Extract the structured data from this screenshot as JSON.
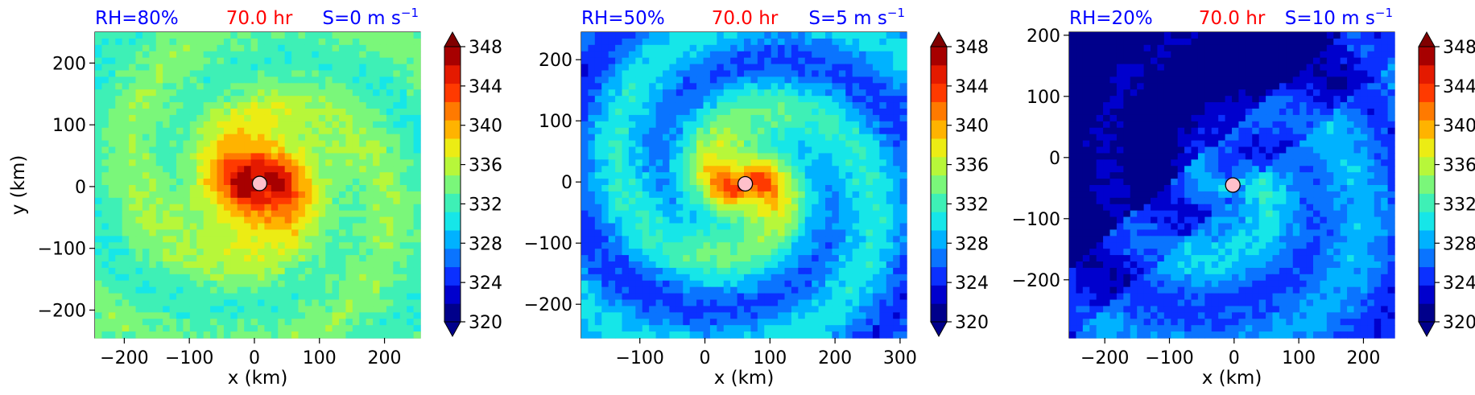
{
  "chart_data": [
    {
      "type": "heatmap",
      "header": {
        "left": "RH=80%",
        "center": "70.0 hr",
        "right_base": "S=0 m s",
        "right_exp": "−1"
      },
      "xlabel": "x (km)",
      "ylabel": "y (km)",
      "xticks": [
        -200,
        -100,
        0,
        100,
        200
      ],
      "yticks": [
        -200,
        -100,
        0,
        100,
        200
      ],
      "xlim": [
        -245,
        255
      ],
      "ylim": [
        -245,
        250
      ],
      "center_marker": {
        "x": 8,
        "y": 5
      },
      "field": {
        "center": [
          8,
          5
        ],
        "eye_radius_km": 30,
        "eye_value": 348,
        "outer_value": 333.5,
        "decay_km": 55,
        "spiral_amp": 1.5
      },
      "colorbar": {
        "ticks": [
          320,
          324,
          328,
          332,
          336,
          340,
          344,
          348
        ]
      }
    },
    {
      "type": "heatmap",
      "header": {
        "left": "RH=50%",
        "center": "70.0 hr",
        "right_base": "S=5 m s",
        "right_exp": "−1"
      },
      "xlabel": "x (km)",
      "ylabel": "",
      "xticks": [
        -100,
        0,
        100,
        200,
        300
      ],
      "yticks": [
        -200,
        -100,
        0,
        100,
        200
      ],
      "xlim": [
        -190,
        310
      ],
      "ylim": [
        -255,
        245
      ],
      "center_marker": {
        "x": 62,
        "y": -3
      },
      "field": {
        "center": [
          62,
          -3
        ],
        "eye_radius_km": 25,
        "eye_value": 343,
        "outer_value": 327.5,
        "decay_km": 70,
        "spiral_amp": 3.0
      },
      "colorbar": {
        "ticks": [
          320,
          324,
          328,
          332,
          336,
          340,
          344,
          348
        ]
      }
    },
    {
      "type": "heatmap",
      "header": {
        "left": "RH=20%",
        "center": "70.0 hr",
        "right_base": "S=10 m s",
        "right_exp": "−1"
      },
      "xlabel": "x (km)",
      "ylabel": "",
      "xticks": [
        -200,
        -100,
        0,
        100,
        200
      ],
      "yticks": [
        -200,
        -100,
        0,
        100,
        200
      ],
      "xlim": [
        -255,
        248
      ],
      "ylim": [
        -295,
        205
      ],
      "center_marker": {
        "x": -2,
        "y": -45
      },
      "field": {
        "center": [
          -2,
          -45
        ],
        "eye_radius_km": 0,
        "eye_value": 331,
        "outer_value": 326,
        "decay_km": 150,
        "spiral_amp": 2.0,
        "dry_northwest": true
      },
      "colorbar": {
        "ticks": [
          320,
          324,
          328,
          332,
          336,
          340,
          344,
          348
        ]
      }
    }
  ],
  "colors": {
    "header_blue": "#0000ff",
    "header_red": "#ff0000",
    "levels": [
      "#00008b",
      "#0000cd",
      "#0b30ff",
      "#0a74ff",
      "#00b2ff",
      "#16e6e8",
      "#3ef0b6",
      "#7af77a",
      "#b7f73a",
      "#ecec14",
      "#ffb300",
      "#ff7a00",
      "#ff3a00",
      "#e41a00",
      "#a70000"
    ],
    "extend_low": "#00008b",
    "extend_high": "#800000",
    "marker_fill": "#ffc0cb"
  }
}
